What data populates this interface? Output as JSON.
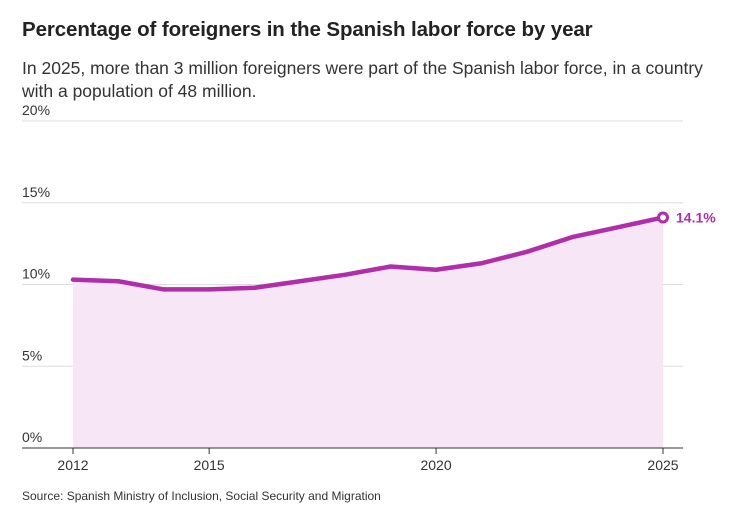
{
  "title": "Percentage of foreigners in the Spanish labor force by year",
  "subtitle": "In 2025, more than 3 million foreigners were part of the Spanish labor force, in a country with a population of 48 million.",
  "source": "Source: Spanish Ministry of Inclusion, Social Security and Migration",
  "colors": {
    "line": "#b02ea8",
    "area": "#f7e6f6",
    "grid": "#dddddd",
    "axis": "#333333"
  },
  "chart_data": {
    "type": "area",
    "x": [
      2012,
      2013,
      2014,
      2015,
      2016,
      2017,
      2018,
      2019,
      2020,
      2021,
      2022,
      2023,
      2024,
      2025
    ],
    "series": [
      {
        "values": [
          10.3,
          10.2,
          9.7,
          9.7,
          9.8,
          10.2,
          10.6,
          11.1,
          10.9,
          11.3,
          12.0,
          12.9,
          13.5,
          14.1
        ]
      }
    ],
    "xlim": [
      2012,
      2025
    ],
    "ylim": [
      0,
      20
    ],
    "y_ticks": [
      0,
      5,
      10,
      15,
      20
    ],
    "y_tick_labels": [
      "0%",
      "5%",
      "10%",
      "15%",
      "20%"
    ],
    "x_ticks": [
      2012,
      2015,
      2020,
      2025
    ],
    "x_tick_labels": [
      "2012",
      "2015",
      "2020",
      "2025"
    ],
    "end_label": "14.1%",
    "grid": true,
    "xlabel": "",
    "ylabel": ""
  }
}
